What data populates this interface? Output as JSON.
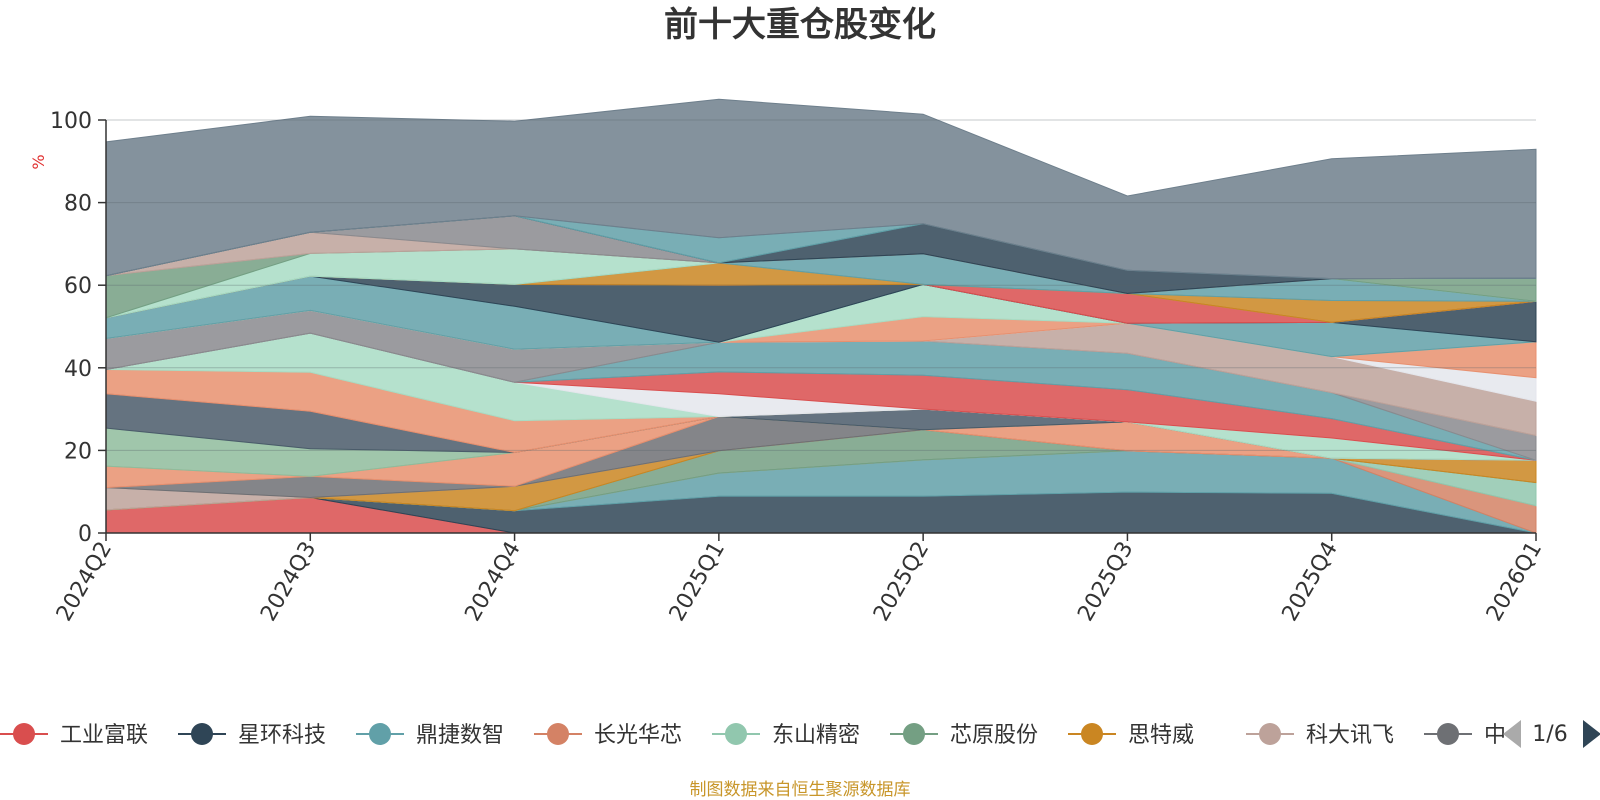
{
  "chart_data": {
    "type": "area",
    "title": "前十大重仓股变化",
    "ylabel": "%",
    "ylim": [
      0,
      100
    ],
    "yticks": [
      "0",
      "20",
      "40",
      "60",
      "80",
      "100"
    ],
    "categories": [
      "2024Q2",
      "2024Q3",
      "2024Q4",
      "2025Q1",
      "2025Q2",
      "2025Q3",
      "2025Q4",
      "2026Q1"
    ],
    "stacked": true,
    "grid": true,
    "legend_position": "bottom",
    "series": [
      {
        "name": "工业富联",
        "color": "#d94e4e",
        "values": [
          5.6,
          8.6,
          0,
          0,
          0,
          0,
          0,
          0
        ]
      },
      {
        "name": "星环科技",
        "color": "#2f4556",
        "values": [
          0,
          0,
          5.4,
          8.9,
          8.9,
          9.9,
          9.6,
          0
        ]
      },
      {
        "name": "鼎捷数智",
        "color": "#61a0a8",
        "values": [
          0,
          0,
          0,
          5.6,
          8.8,
          10.0,
          8.5,
          0
        ]
      },
      {
        "name": "长光华芯",
        "color": "#d48265",
        "values": [
          0,
          0,
          0,
          0,
          0,
          0,
          0,
          6.6
        ]
      },
      {
        "name": "东山精密",
        "color": "#91c7ae",
        "values": [
          0,
          0,
          0,
          0,
          0,
          0,
          0,
          5.6
        ]
      },
      {
        "name": "芯原股份",
        "color": "#749f83",
        "values": [
          0,
          0,
          0,
          5.4,
          7.3,
          0,
          0,
          0
        ]
      },
      {
        "name": "思特威",
        "color": "#ca8622",
        "values": [
          0,
          0,
          5.9,
          0,
          0,
          0,
          0,
          5.4
        ]
      },
      {
        "name": "科大讯飞",
        "color": "#bda29a",
        "values": [
          5.4,
          0,
          0,
          0,
          0,
          0,
          0,
          0
        ]
      },
      {
        "name": "中",
        "color": "#6e7074",
        "values": [
          0,
          5.1,
          0,
          8.3,
          0,
          0,
          0,
          0
        ]
      },
      {
        "name": "",
        "color": "#e8906f",
        "values": [
          5.2,
          0,
          8.2,
          0,
          0,
          7.0,
          0,
          0
        ]
      },
      {
        "name": "",
        "color": "#8fbc9c",
        "values": [
          9.2,
          6.7,
          0,
          0,
          0,
          0,
          0,
          0
        ]
      },
      {
        "name": "",
        "color": "#4a5b6a",
        "values": [
          8.3,
          9.1,
          0,
          0,
          5.0,
          0,
          0,
          0
        ]
      },
      {
        "name": "",
        "color": "#e8906f",
        "values": [
          5.9,
          9.4,
          7.7,
          0,
          0,
          0,
          0,
          0
        ]
      },
      {
        "name": "",
        "color": "#a8dcc4",
        "values": [
          0,
          9.5,
          9.3,
          0,
          0,
          0,
          4.9,
          0
        ]
      },
      {
        "name": "",
        "color": "#e4e6ec",
        "values": [
          0,
          0,
          0,
          5.5,
          0,
          0,
          0,
          0
        ]
      },
      {
        "name": "",
        "color": "#d94e4e",
        "values": [
          0,
          0,
          0,
          5.3,
          8.2,
          7.8,
          4.7,
          0
        ]
      },
      {
        "name": "",
        "color": "#61a0a8",
        "values": [
          0,
          0,
          0,
          7.2,
          8.3,
          8.8,
          6.3,
          0
        ]
      },
      {
        "name": "",
        "color": "#8a8a8e",
        "values": [
          7.5,
          5.5,
          8.0,
          0,
          0,
          0,
          0,
          6.0
        ]
      },
      {
        "name": "",
        "color": "#bda29a",
        "values": [
          0,
          0,
          0,
          0,
          0,
          7.3,
          8.7,
          8.3
        ]
      },
      {
        "name": "",
        "color": "#e4e6ec",
        "values": [
          0,
          0,
          0,
          0,
          0,
          0,
          0,
          5.7
        ]
      },
      {
        "name": "",
        "color": "#e8906f",
        "values": [
          0,
          0,
          0,
          0,
          5.9,
          0,
          0,
          8.7
        ]
      },
      {
        "name": "",
        "color": "#a8dcc4",
        "values": [
          0,
          0,
          0,
          0,
          7.8,
          0,
          0,
          0
        ]
      },
      {
        "name": "",
        "color": "#61a0a8",
        "values": [
          5.0,
          8.3,
          10.4,
          0,
          0,
          0,
          8.3,
          0
        ]
      },
      {
        "name": "",
        "color": "#2f4556",
        "values": [
          0,
          0,
          5.3,
          13.8,
          0,
          0,
          0,
          9.8
        ]
      },
      {
        "name": "",
        "color": "#d94e4e",
        "values": [
          0,
          0,
          0,
          0,
          0,
          7.2,
          0,
          0
        ]
      },
      {
        "name": "",
        "color": "#bda29a",
        "values": [
          0,
          0,
          0,
          0,
          0,
          0,
          0,
          0
        ]
      },
      {
        "name": "",
        "color": "#ca8622",
        "values": [
          0,
          0,
          0,
          5.4,
          0,
          0,
          5.3,
          0
        ]
      },
      {
        "name": "",
        "color": "#61a0a8",
        "values": [
          0,
          0,
          0,
          0,
          7.4,
          0,
          5.3,
          0
        ]
      },
      {
        "name": "",
        "color": "#a8dcc4",
        "values": [
          0,
          5.5,
          8.6,
          0,
          0,
          0,
          0,
          0
        ]
      },
      {
        "name": "",
        "color": "#749f83",
        "values": [
          10.2,
          0,
          0,
          0,
          0,
          0,
          0,
          5.6
        ]
      },
      {
        "name": "",
        "color": "#bda29a",
        "values": [
          0,
          5.1,
          0,
          0,
          0,
          0,
          0,
          0
        ]
      },
      {
        "name": "",
        "color": "#8a8a8e",
        "values": [
          0,
          0,
          8.0,
          0,
          0,
          0,
          0,
          0
        ]
      },
      {
        "name": "",
        "color": "#2f4556",
        "values": [
          0,
          0,
          0,
          0,
          7.3,
          5.6,
          0,
          0
        ]
      },
      {
        "name": "",
        "color": "#61a0a8",
        "values": [
          0,
          0,
          0,
          6.1,
          0,
          0.0,
          0,
          0
        ]
      },
      {
        "name": "",
        "color": "#6e7f8c",
        "values": [
          32.4,
          28.1,
          22.9,
          33.5,
          26.5,
          18.0,
          29.0,
          31.2
        ]
      }
    ]
  },
  "legend": {
    "items": [
      {
        "name": "工业富联",
        "color": "#d94e4e"
      },
      {
        "name": "星环科技",
        "color": "#2f4556"
      },
      {
        "name": "鼎捷数智",
        "color": "#61a0a8"
      },
      {
        "name": "长光华芯",
        "color": "#d48265"
      },
      {
        "name": "东山精密",
        "color": "#91c7ae"
      },
      {
        "name": "芯原股份",
        "color": "#749f83"
      },
      {
        "name": "思特威",
        "color": "#ca8622"
      },
      {
        "name": "科大讯飞",
        "color": "#bda29a"
      },
      {
        "name": "中",
        "color": "#6e7074"
      }
    ],
    "page_text": "1/6"
  },
  "footer": {
    "source": "制图数据来自恒生聚源数据库"
  }
}
